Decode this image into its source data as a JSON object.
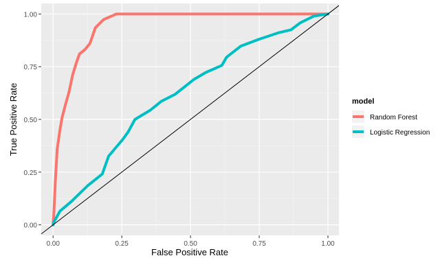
{
  "chart_data": {
    "type": "line",
    "title": "",
    "xlabel": "False Positive Rate",
    "ylabel": "True Positive Rate",
    "xlim": [
      -0.043,
      1.04
    ],
    "ylim": [
      -0.05,
      1.05
    ],
    "xticks": [
      0,
      0.25,
      0.5,
      0.75,
      1
    ],
    "yticks": [
      0,
      0.25,
      0.5,
      0.75,
      1
    ],
    "xtick_labels": [
      "0.00",
      "0.25",
      "0.50",
      "0.75",
      "1.00"
    ],
    "ytick_labels": [
      "0.00",
      "0.25",
      "0.50",
      "0.75",
      "1.00"
    ],
    "grid": true,
    "legend": {
      "title": "model",
      "placement": "right"
    },
    "reference_line": {
      "x": [
        -0.043,
        1.04
      ],
      "y": [
        -0.043,
        1.04
      ],
      "color": "#000000"
    },
    "series": [
      {
        "name": "Random Forest",
        "color": "#F8766D",
        "x": [
          0,
          0.003,
          0.008,
          0.015,
          0.025,
          0.033,
          0.045,
          0.058,
          0.071,
          0.085,
          0.096,
          0.115,
          0.134,
          0.154,
          0.184,
          0.23,
          1.0
        ],
        "y": [
          0,
          0.055,
          0.2,
          0.36,
          0.45,
          0.51,
          0.57,
          0.63,
          0.71,
          0.77,
          0.81,
          0.83,
          0.86,
          0.935,
          0.974,
          1.0,
          1.0
        ]
      },
      {
        "name": "Logistic Regression",
        "color": "#00BFC4",
        "x": [
          0,
          0.003,
          0.025,
          0.066,
          0.126,
          0.179,
          0.202,
          0.253,
          0.273,
          0.298,
          0.354,
          0.394,
          0.444,
          0.513,
          0.556,
          0.614,
          0.631,
          0.682,
          0.747,
          0.823,
          0.866,
          0.899,
          0.949,
          1.0
        ],
        "y": [
          0,
          0.013,
          0.065,
          0.11,
          0.186,
          0.241,
          0.326,
          0.404,
          0.44,
          0.5,
          0.544,
          0.586,
          0.619,
          0.69,
          0.723,
          0.756,
          0.795,
          0.847,
          0.879,
          0.912,
          0.925,
          0.958,
          0.99,
          1.0
        ]
      }
    ]
  }
}
